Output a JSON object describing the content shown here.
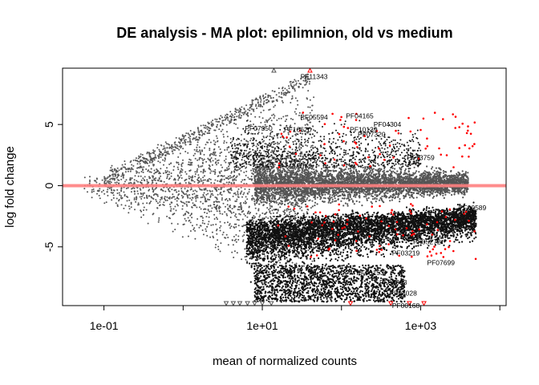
{
  "chart_data": {
    "type": "scatter",
    "title": "DE analysis - MA plot: epilimnion, old vs medium",
    "xlabel": "mean of normalized counts",
    "ylabel": "log fold change",
    "x_scale": "log10",
    "xlim": [
      0.03,
      12000
    ],
    "ylim": [
      -9.8,
      9.6
    ],
    "x_ticks": [
      {
        "value": 0.1,
        "label": "1e-01"
      },
      {
        "value": 10,
        "label": "1e+01"
      },
      {
        "value": 1000,
        "label": "1e+03"
      }
    ],
    "y_ticks": [
      {
        "value": -5,
        "label": "-5"
      },
      {
        "value": 0,
        "label": "0"
      },
      {
        "value": 5,
        "label": "5"
      }
    ],
    "reference_line": {
      "y": 0,
      "color": "#ff7f7f"
    },
    "grid": false,
    "legend": "none",
    "colors": {
      "not_significant": "#555555",
      "significant": "#ff0000",
      "labels": "#000000"
    },
    "series": [
      {
        "significant": false,
        "shape": "point",
        "note": "dense cloud of thousands of non-significant genes (main body of the MA plot)"
      },
      {
        "significant": true,
        "shape": "point",
        "note": "red points with |LFC| significant"
      },
      {
        "significant": true,
        "shape": "triangle-up",
        "note": "out-of-range above ylim"
      },
      {
        "significant": true,
        "shape": "triangle-down",
        "note": "out-of-range below ylim"
      }
    ],
    "labeled_points": [
      {
        "label": "PF11343",
        "x": 45,
        "y": 8.9
      },
      {
        "label": "PF04165",
        "x": 170,
        "y": 5.7
      },
      {
        "label": "PF04304",
        "x": 380,
        "y": 5.0
      },
      {
        "label": "PF05594",
        "x": 45,
        "y": 5.6
      },
      {
        "label": "PF16620",
        "x": 28,
        "y": 4.6
      },
      {
        "label": "PF10139",
        "x": 190,
        "y": 4.6
      },
      {
        "label": "PF07320",
        "x": 240,
        "y": 4.2
      },
      {
        "label": "PF07350",
        "x": 9,
        "y": 4.7
      },
      {
        "label": "PF13759",
        "x": 1000,
        "y": 2.3
      },
      {
        "label": "PF00589",
        "x": 4500,
        "y": -1.8
      },
      {
        "label": "PF05272",
        "x": 1200,
        "y": -4.6
      },
      {
        "label": "PF07699",
        "x": 1800,
        "y": -6.3
      },
      {
        "label": "PF03219",
        "x": 650,
        "y": -5.5
      },
      {
        "label": "PF00153",
        "x": 230,
        "y": -7.1
      },
      {
        "label": "PF08393",
        "x": 450,
        "y": -7.9
      },
      {
        "label": "PF03028",
        "x": 600,
        "y": -8.8
      },
      {
        "label": "PF00168",
        "x": 650,
        "y": -9.8
      }
    ]
  }
}
